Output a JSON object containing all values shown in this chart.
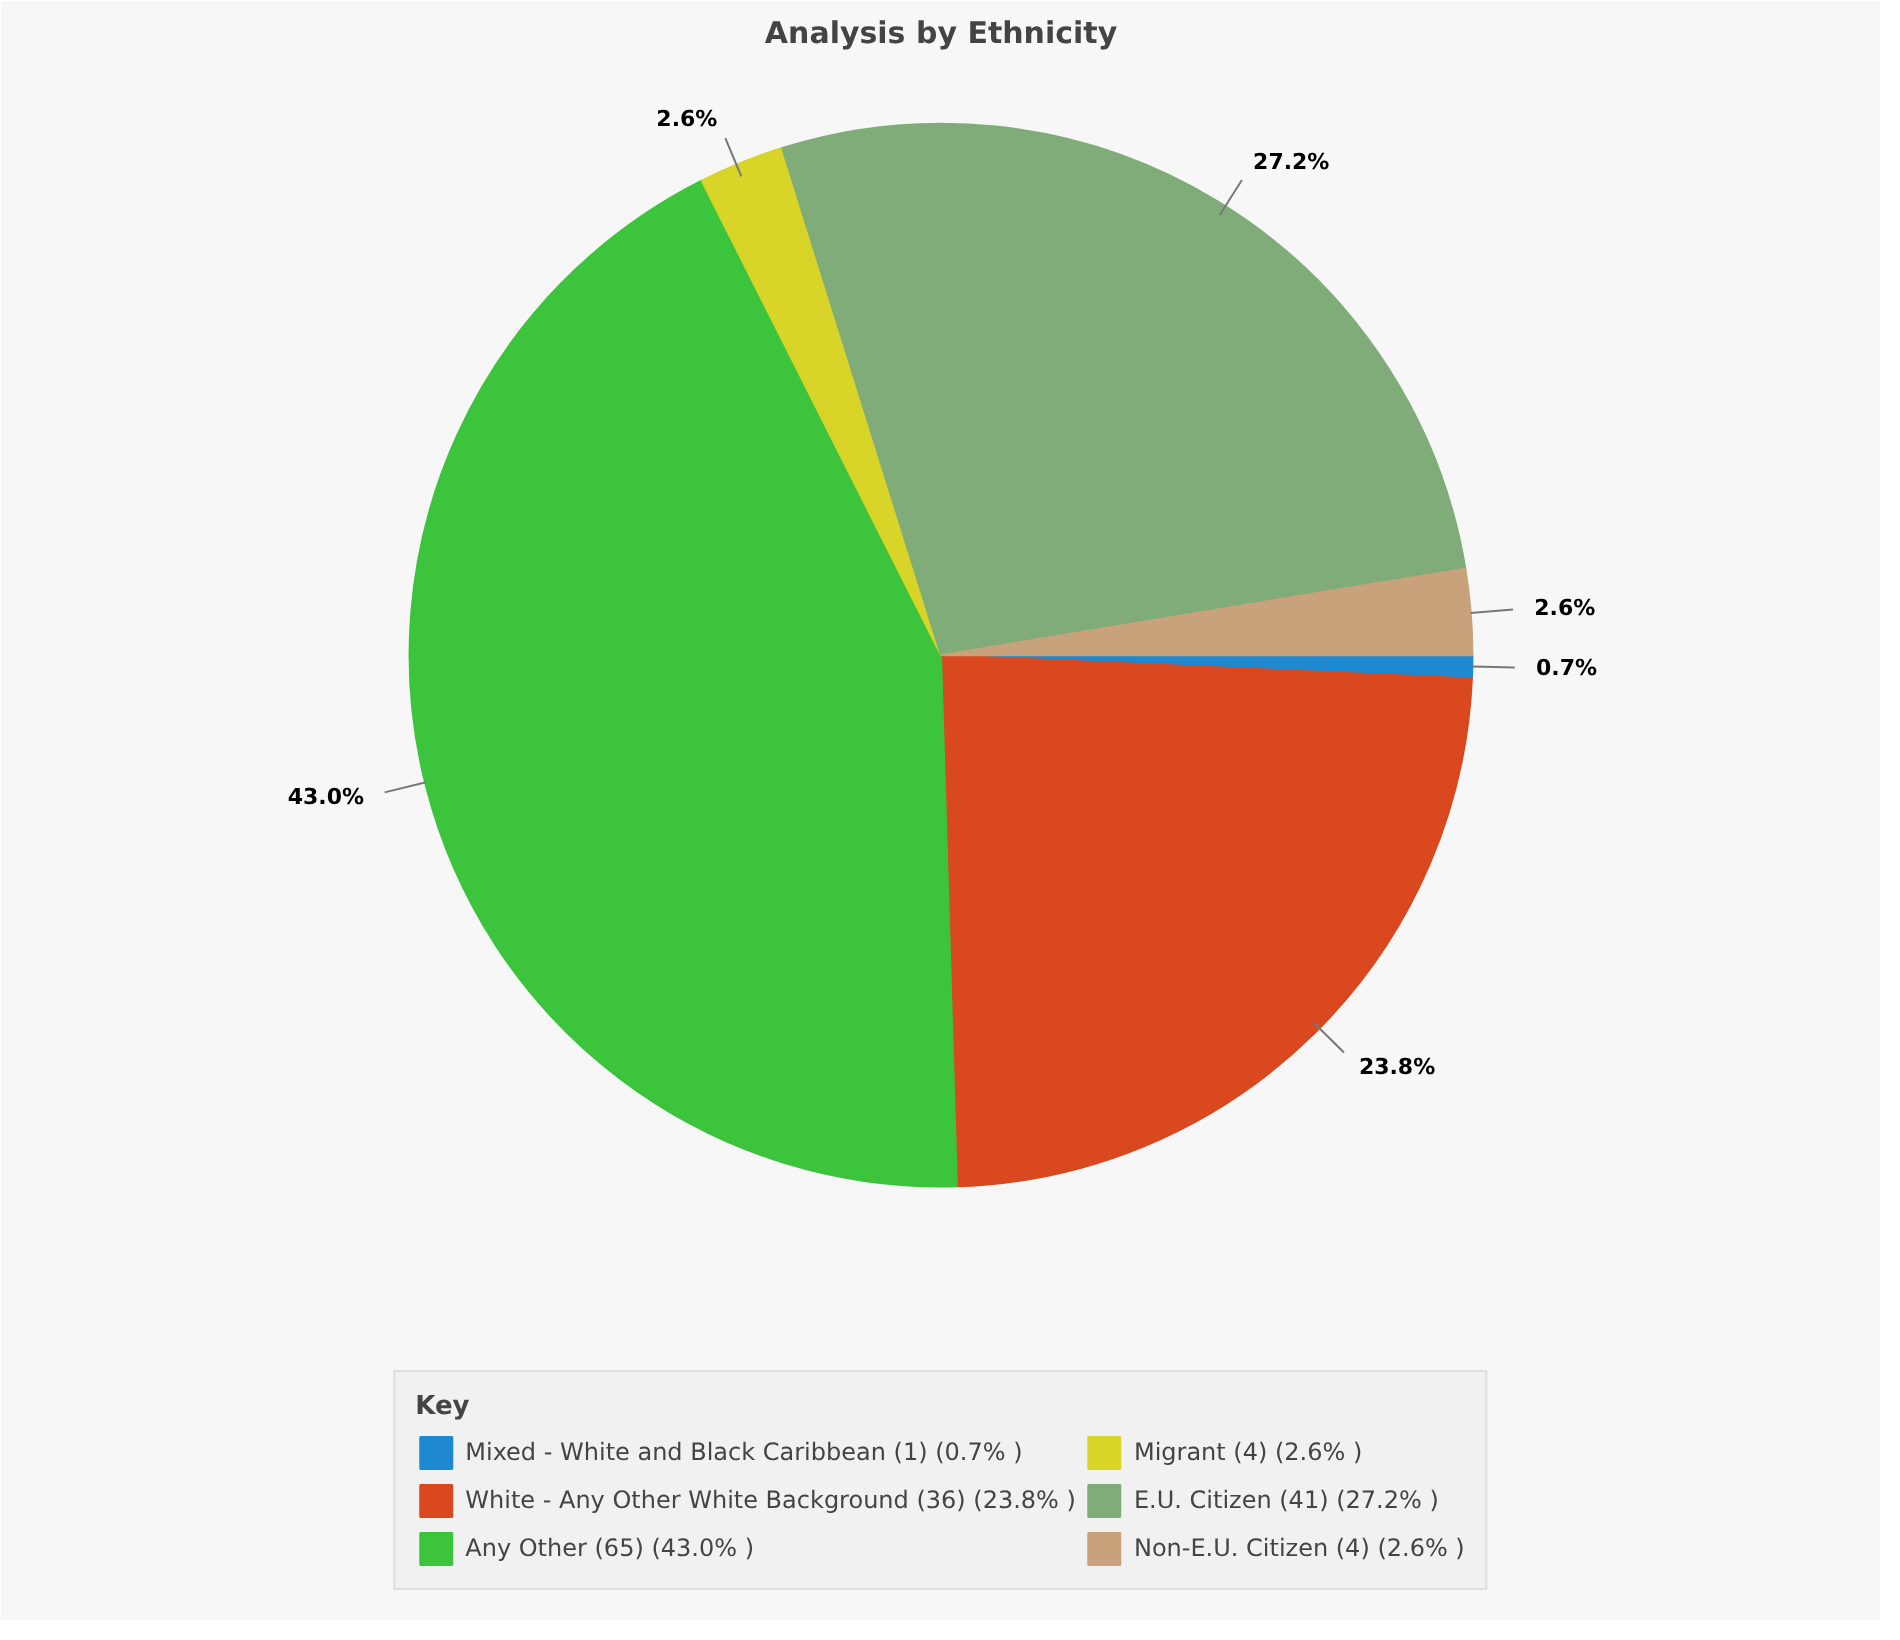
{
  "chart_data": {
    "type": "pie",
    "title": "Analysis by Ethnicity",
    "legend_title": "Key",
    "legend": "bottom",
    "categories": [
      "Mixed - White and Black Caribbean (1) (0.7% )",
      "White - Any Other White Background (36) (23.8% )",
      "Any Other (65) (43.0% )",
      "Migrant (4) (2.6% )",
      "E.U. Citizen (41) (27.2% )",
      "Non-E.U. Citizen (4) (2.6% )"
    ],
    "values": [
      0.7,
      23.8,
      43.0,
      2.6,
      27.2,
      2.6
    ],
    "value_labels": [
      "0.7%",
      "23.8%",
      "43.0%",
      "2.6%",
      "27.2%",
      "2.6%"
    ],
    "colors": [
      "#1e88d0",
      "#d9481f",
      "#3cc43c",
      "#d8d428",
      "#7fac78",
      "#c8a27a"
    ]
  }
}
